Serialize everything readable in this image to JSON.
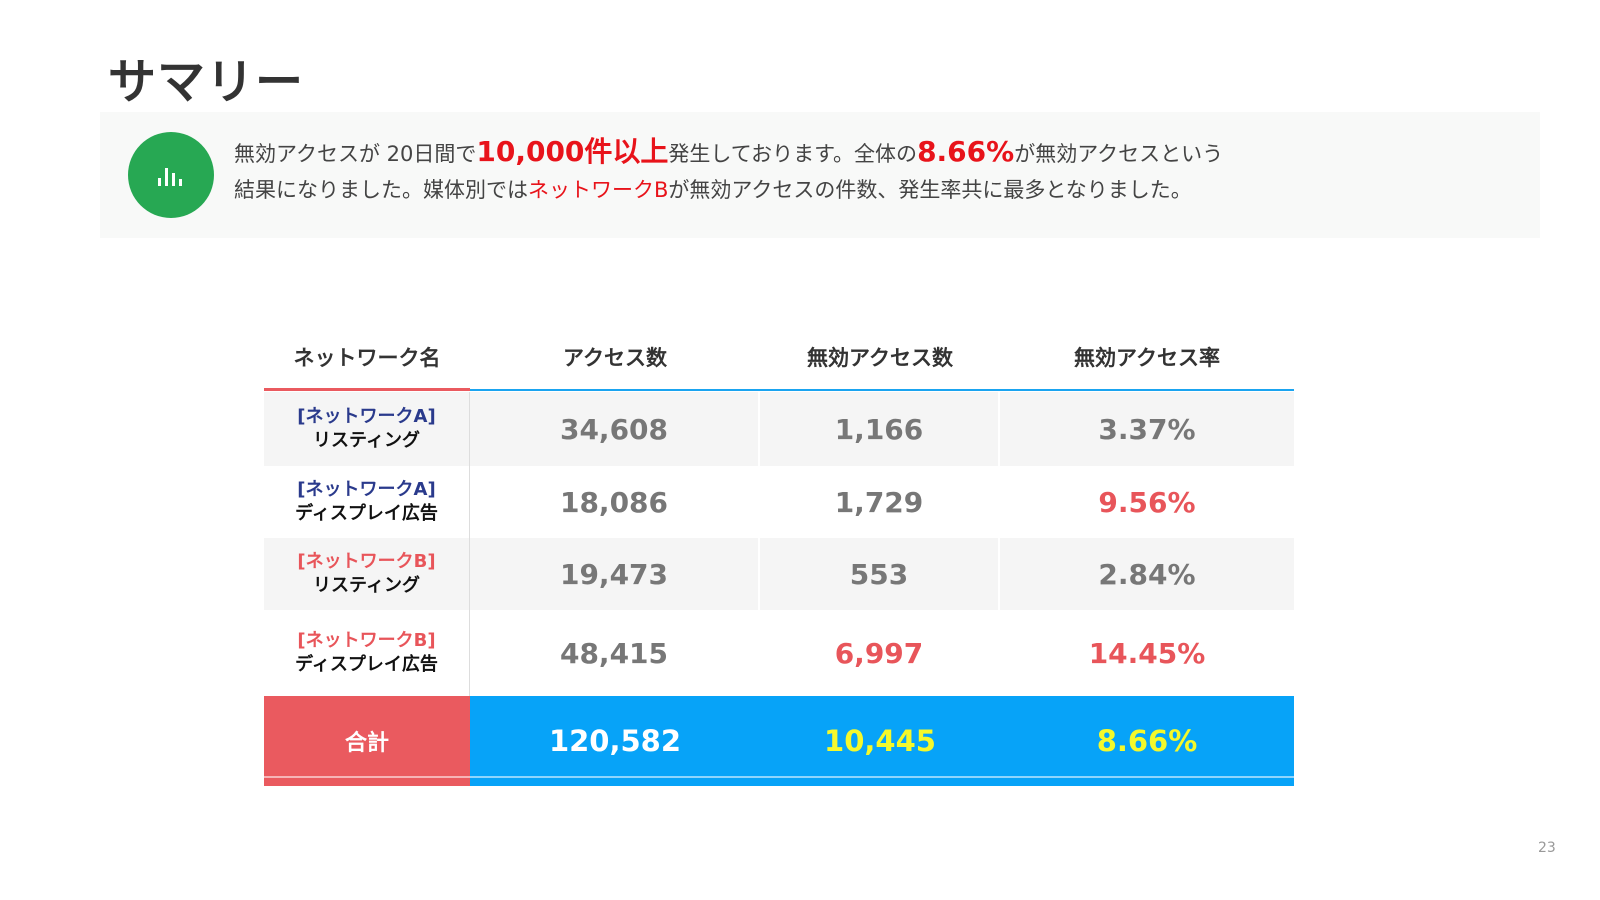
{
  "title": "サマリー",
  "summary": {
    "icon": "bar-chart-icon",
    "icon_color": "#27a853",
    "line1_part1": "無効アクセスが 20日間で",
    "line1_highlight1": "10,000件以上",
    "line1_part2": "発生しております。全体の",
    "line1_highlight2": "8.66%",
    "line1_part3": "が無効アクセスという",
    "line2_part1": "結果になりました。媒体別では",
    "line2_highlight": "ネットワークB",
    "line2_part2": "が無効アクセスの件数、発生率共に最多となりました。"
  },
  "table": {
    "headers": [
      "ネットワーク名",
      "アクセス数",
      "無効アクセス数",
      "無効アクセス率"
    ],
    "rows": [
      {
        "network": "[ネットワークA]",
        "type": "リスティング",
        "access": "34,608",
        "invalid": "1,166",
        "rate": "3.37%"
      },
      {
        "network": "[ネットワークA]",
        "type": "ディスプレイ広告",
        "access": "18,086",
        "invalid": "1,729",
        "rate": "9.56%"
      },
      {
        "network": "[ネットワークB]",
        "type": "リスティング",
        "access": "19,473",
        "invalid": "553",
        "rate": "2.84%"
      },
      {
        "network": "[ネットワークB]",
        "type": "ディスプレイ広告",
        "access": "48,415",
        "invalid": "6,997",
        "rate": "14.45%"
      }
    ],
    "total": {
      "label": "合計",
      "access": "120,582",
      "invalid": "10,445",
      "rate": "8.66%"
    }
  },
  "colors": {
    "highlight_red": "#e8131a",
    "network_a": "#2a3a8c",
    "network_b": "#e8555a",
    "total_label_bg": "#ea5a5f",
    "total_values_bg": "#07a3f8",
    "total_yellow": "#f4f92b"
  },
  "page_number": "23"
}
